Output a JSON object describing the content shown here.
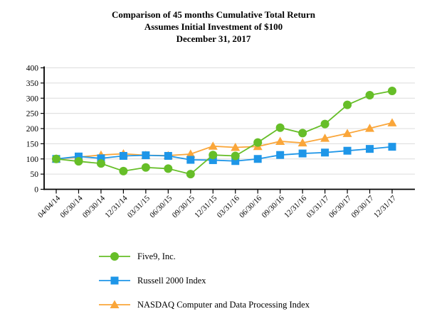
{
  "title": {
    "line1": "Comparison of 45 months Cumulative Total Return",
    "line2": "Assumes Initial Investment of $100",
    "line3": "December 31, 2017"
  },
  "chart_data": {
    "type": "line",
    "title": "Comparison of 45 months Cumulative Total Return",
    "subtitle": "Assumes Initial Investment of $100",
    "date_label": "December 31, 2017",
    "categories": [
      "04/04/14",
      "06/30/14",
      "09/30/14",
      "12/31/14",
      "03/31/15",
      "06/30/15",
      "09/30/15",
      "12/31/15",
      "03/31/16",
      "06/30/16",
      "09/30/16",
      "12/31/16",
      "03/31/17",
      "06/30/17",
      "09/30/17",
      "12/31/17"
    ],
    "series": [
      {
        "name": "Five9, Inc.",
        "marker": "circle",
        "color": "#66BE28",
        "values": [
          100,
          92,
          85,
          60,
          72,
          68,
          50,
          113,
          110,
          154,
          203,
          185,
          215,
          278,
          310,
          324
        ]
      },
      {
        "name": "Russell 2000 Index",
        "marker": "square",
        "color": "#1E96E8",
        "values": [
          100,
          108,
          102,
          110,
          112,
          110,
          97,
          96,
          93,
          100,
          113,
          118,
          121,
          127,
          133,
          140
        ]
      },
      {
        "name": "NASDAQ Computer and Data Processing Index",
        "marker": "triangle",
        "color": "#FAA63A",
        "values": [
          100,
          106,
          113,
          117,
          112,
          111,
          116,
          142,
          138,
          141,
          158,
          153,
          168,
          184,
          201,
          219
        ]
      }
    ],
    "ylim": [
      0,
      400
    ],
    "ytick_step": 50,
    "ytick_labels": [
      "0",
      "50",
      "100",
      "150",
      "200",
      "250",
      "300",
      "350",
      "400"
    ],
    "grid": "horizontal",
    "gridline_color": "#DCDCDC",
    "axis_color": "#000000",
    "legend_position": "bottom-left",
    "xlabel": "",
    "ylabel": ""
  }
}
